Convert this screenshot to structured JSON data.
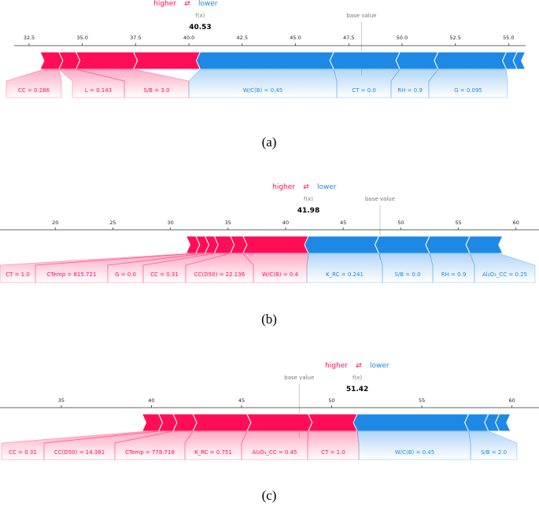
{
  "colors": {
    "higher": "#ff0d57",
    "lower": "#1e88e5",
    "text_pos": "#ff0d57",
    "text_neg": "#1e88e5"
  },
  "legend": {
    "higher": "higher",
    "lower": "lower",
    "arrows": "⇄"
  },
  "chart_data": [
    {
      "type": "force",
      "caption": "(a)",
      "fx_label": "f(x)",
      "base_label": "base value",
      "fx": 40.53,
      "fx_text": "40.53",
      "base": 48.1,
      "xlim": [
        31.8,
        55.8
      ],
      "ticks": [
        32.5,
        35.0,
        37.5,
        40.0,
        42.5,
        45.0,
        47.5,
        50.0,
        52.5,
        55.0
      ],
      "tick_labels": [
        "32.5",
        "35.0",
        "37.5",
        "40.0",
        "42.5",
        "45.0",
        "47.5",
        "50.0",
        "52.5",
        "55.0"
      ],
      "positive": [
        {
          "label": "CC = 0.286",
          "from": 33.2,
          "to": 33.9,
          "shown": true
        },
        {
          "label": "L = 0.143",
          "from": 33.9,
          "to": 34.7,
          "shown": true
        },
        {
          "label": "S/B = 3.0",
          "from": 34.7,
          "to": 37.4,
          "shown": true
        },
        {
          "label": "",
          "from": 37.4,
          "to": 40.53,
          "shown": false
        }
      ],
      "negative": [
        {
          "label": "W/C(B) = 0.45",
          "from": 40.53,
          "to": 46.8,
          "shown": true
        },
        {
          "label": "CT = 0.0",
          "from": 46.8,
          "to": 49.9,
          "shown": true
        },
        {
          "label": "RH = 0.9",
          "from": 49.9,
          "to": 51.7,
          "shown": true
        },
        {
          "label": "G = 0.095",
          "from": 51.7,
          "to": 54.9,
          "shown": true
        },
        {
          "label": "",
          "from": 54.9,
          "to": 55.4,
          "shown": false
        },
        {
          "label": "",
          "from": 55.4,
          "to": 55.6,
          "shown": false
        }
      ]
    },
    {
      "type": "force",
      "caption": "(b)",
      "fx_label": "f(x)",
      "base_label": "base value",
      "fx": 41.98,
      "fx_text": "41.98",
      "base": 48.2,
      "xlim": [
        15.2,
        62.0
      ],
      "ticks": [
        20,
        25,
        30,
        35,
        40,
        45,
        50,
        55,
        60
      ],
      "tick_labels": [
        "20",
        "25",
        "30",
        "35",
        "40",
        "45",
        "50",
        "55",
        "60"
      ],
      "positive": [
        {
          "label": "CT = 1.0",
          "from": 31.7,
          "to": 32.2,
          "shown": true
        },
        {
          "label": "CTemp = 815.721",
          "from": 32.2,
          "to": 33.0,
          "shown": true
        },
        {
          "label": "G = 0.0",
          "from": 33.0,
          "to": 33.8,
          "shown": true
        },
        {
          "label": "CC = 0.31",
          "from": 33.8,
          "to": 35.2,
          "shown": true
        },
        {
          "label": "CC(D50) = 22.136",
          "from": 35.2,
          "to": 36.3,
          "shown": true
        },
        {
          "label": "W/C(B) = 0.4",
          "from": 36.3,
          "to": 41.98,
          "shown": true
        }
      ],
      "negative": [
        {
          "label": "K_RC = 0.241",
          "from": 41.98,
          "to": 48.1,
          "shown": true
        },
        {
          "label": "S/B = 0.0",
          "from": 48.1,
          "to": 52.5,
          "shown": true
        },
        {
          "label": "RH = 0.9",
          "from": 52.5,
          "to": 56.0,
          "shown": true
        },
        {
          "label": "Al₂O₃_CC = 0.25",
          "from": 56.0,
          "to": 58.5,
          "shown": true
        }
      ]
    },
    {
      "type": "force",
      "caption": "(c)",
      "fx_label": "f(x)",
      "base_label": "base value",
      "fx": 51.42,
      "fx_text": "51.42",
      "base": 48.2,
      "xlim": [
        31.6,
        61.5
      ],
      "ticks": [
        35,
        40,
        45,
        50,
        55,
        60
      ],
      "tick_labels": [
        "35",
        "40",
        "45",
        "50",
        "55",
        "60"
      ],
      "positive": [
        {
          "label": "CC = 0.31",
          "from": 39.7,
          "to": 40.4,
          "shown": true
        },
        {
          "label": "CC(D50) = 14.381",
          "from": 40.4,
          "to": 41.2,
          "shown": true
        },
        {
          "label": "CTemp = 778.718",
          "from": 41.2,
          "to": 42.3,
          "shown": true
        },
        {
          "label": "K_RC = 0.751",
          "from": 42.3,
          "to": 45.3,
          "shown": true
        },
        {
          "label": "Al₂O₃_CC = 0.45",
          "from": 45.3,
          "to": 48.7,
          "shown": true
        },
        {
          "label": "CT = 1.0",
          "from": 48.7,
          "to": 51.42,
          "shown": true
        }
      ],
      "negative": [
        {
          "label": "W/C(B) = 0.45",
          "from": 51.42,
          "to": 57.6,
          "shown": true
        },
        {
          "label": "S/B = 2.0",
          "from": 57.6,
          "to": 58.7,
          "shown": true
        },
        {
          "label": "",
          "from": 58.7,
          "to": 59.3,
          "shown": false
        },
        {
          "label": "",
          "from": 59.3,
          "to": 59.7,
          "shown": false
        }
      ]
    }
  ]
}
